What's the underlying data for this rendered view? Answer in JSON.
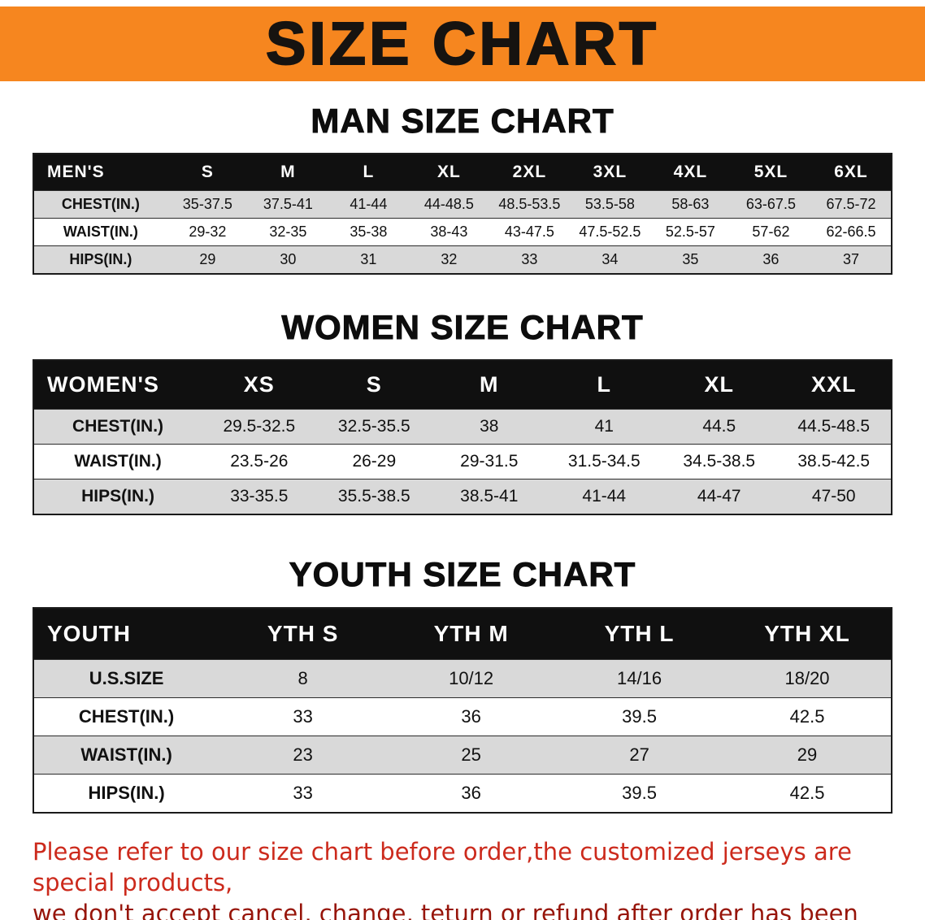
{
  "banner": {
    "title": "SIZE CHART",
    "bg_color": "#f6861f",
    "text_color": "#161310"
  },
  "colors": {
    "table_header_bg": "#101010",
    "table_header_text": "#ffffff",
    "row_alt_gray": "#d9d9d9",
    "disclaimer_red": "#cc2a1c",
    "disclaimer_dark_red": "#97150a"
  },
  "chart_data": [
    {
      "type": "table",
      "title": "MAN SIZE CHART",
      "header": [
        "MEN'S",
        "S",
        "M",
        "L",
        "XL",
        "2XL",
        "3XL",
        "4XL",
        "5XL",
        "6XL"
      ],
      "rows": [
        [
          "CHEST(IN.)",
          "35-37.5",
          "37.5-41",
          "41-44",
          "44-48.5",
          "48.5-53.5",
          "53.5-58",
          "58-63",
          "63-67.5",
          "67.5-72"
        ],
        [
          "WAIST(IN.)",
          "29-32",
          "32-35",
          "35-38",
          "38-43",
          "43-47.5",
          "47.5-52.5",
          "52.5-57",
          "57-62",
          "62-66.5"
        ],
        [
          "HIPS(IN.)",
          "29",
          "30",
          "31",
          "32",
          "33",
          "34",
          "35",
          "36",
          "37"
        ]
      ]
    },
    {
      "type": "table",
      "title": "WOMEN SIZE CHART",
      "header": [
        "WOMEN'S",
        "XS",
        "S",
        "M",
        "L",
        "XL",
        "XXL"
      ],
      "rows": [
        [
          "CHEST(IN.)",
          "29.5-32.5",
          "32.5-35.5",
          "38",
          "41",
          "44.5",
          "44.5-48.5"
        ],
        [
          "WAIST(IN.)",
          "23.5-26",
          "26-29",
          "29-31.5",
          "31.5-34.5",
          "34.5-38.5",
          "38.5-42.5"
        ],
        [
          "HIPS(IN.)",
          "33-35.5",
          "35.5-38.5",
          "38.5-41",
          "41-44",
          "44-47",
          "47-50"
        ]
      ]
    },
    {
      "type": "table",
      "title": "YOUTH SIZE CHART",
      "header": [
        "YOUTH",
        "YTH S",
        "YTH M",
        "YTH L",
        "YTH XL"
      ],
      "rows": [
        [
          "U.S.SIZE",
          "8",
          "10/12",
          "14/16",
          "18/20"
        ],
        [
          "CHEST(IN.)",
          "33",
          "36",
          "39.5",
          "42.5"
        ],
        [
          "WAIST(IN.)",
          "23",
          "25",
          "27",
          "29"
        ],
        [
          "HIPS(IN.)",
          "33",
          "36",
          "39.5",
          "42.5"
        ]
      ]
    }
  ],
  "disclaimer": {
    "line1": "Please refer to our size chart before order,the customized jerseys are special products,",
    "line2": "we don't accept cancel, change, teturn or refund after order has been placed!"
  }
}
